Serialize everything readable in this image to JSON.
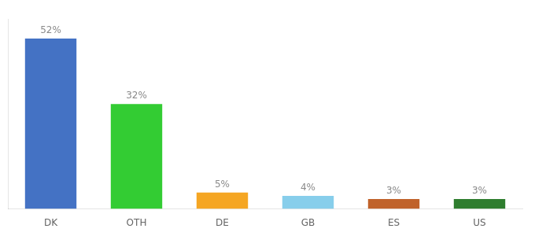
{
  "chart_data": {
    "type": "bar",
    "categories": [
      "DK",
      "OTH",
      "DE",
      "GB",
      "ES",
      "US"
    ],
    "values": [
      52,
      32,
      5,
      4,
      3,
      3
    ],
    "colors": [
      "#4472c4",
      "#33cc33",
      "#f5a623",
      "#87ceeb",
      "#c0622a",
      "#2e7d2e"
    ],
    "value_labels": [
      "52%",
      "32%",
      "5%",
      "4%",
      "3%",
      "3%"
    ],
    "data_labels": true,
    "ylim": [
      0,
      58
    ],
    "grid": false,
    "tick_labels": "x"
  }
}
